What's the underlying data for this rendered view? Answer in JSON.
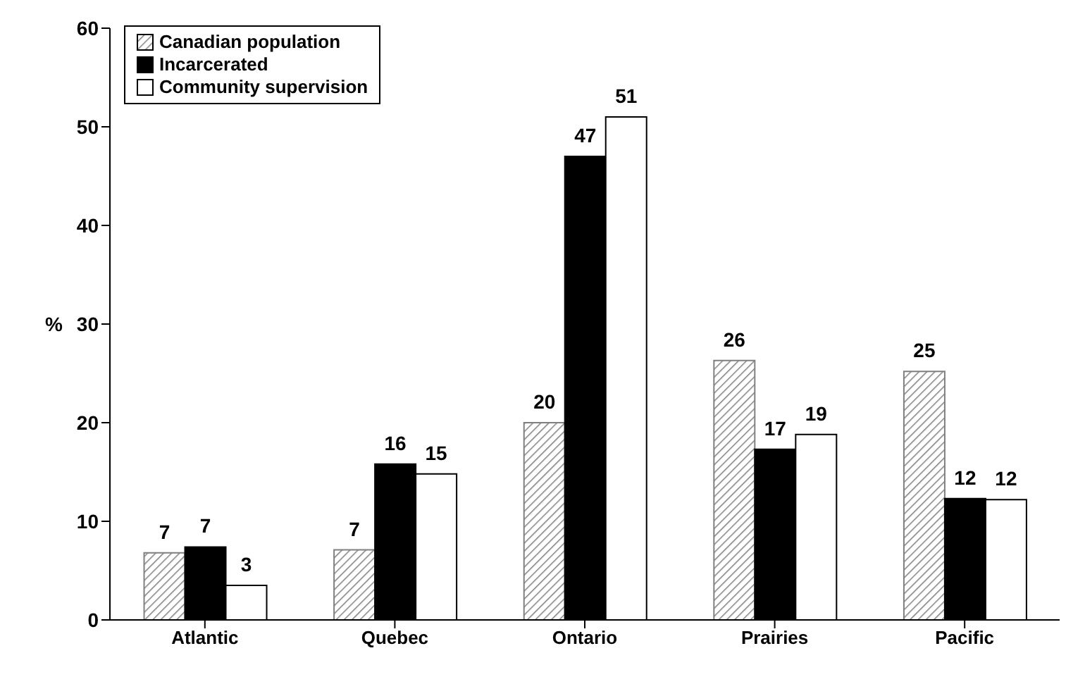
{
  "chart_data": {
    "type": "bar",
    "categories": [
      "Atlantic",
      "Quebec",
      "Ontario",
      "Prairies",
      "Pacific"
    ],
    "ylabel": "%",
    "ylim": [
      0,
      60
    ],
    "yticks": [
      0,
      10,
      20,
      30,
      40,
      50,
      60
    ],
    "grid": false,
    "legend": "top left",
    "series": [
      {
        "name": "Canadian population",
        "color": "#808080",
        "values": [
          6.8,
          7.1,
          20.0,
          26.3,
          25.2
        ],
        "value_labels": [
          "7",
          "7",
          "20",
          "26",
          "25"
        ]
      },
      {
        "name": "Incarcerated",
        "color": "#000000",
        "values": [
          7.4,
          15.8,
          47.0,
          17.3,
          12.3
        ],
        "value_labels": [
          "7",
          "16",
          "47",
          "17",
          "12"
        ]
      },
      {
        "name": "Community supervision",
        "color": "#ffffff",
        "values": [
          3.5,
          14.8,
          51.0,
          18.8,
          12.2
        ],
        "value_labels": [
          "3",
          "15",
          "51",
          "19",
          "12"
        ]
      }
    ]
  }
}
